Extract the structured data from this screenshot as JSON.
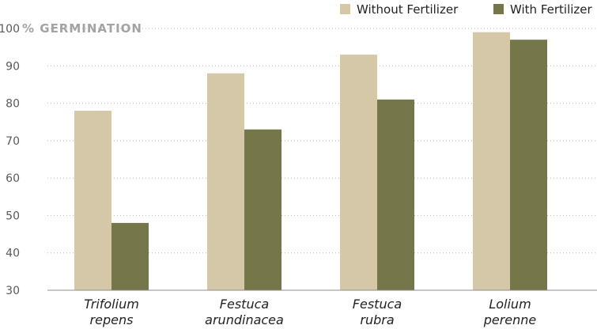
{
  "chart_data": {
    "type": "bar",
    "title": "",
    "ylabel": "% GERMINATION",
    "xlabel": "",
    "ylim": [
      30,
      100
    ],
    "yticks": [
      30,
      40,
      50,
      60,
      70,
      80,
      90,
      100
    ],
    "grid": true,
    "legend_position": "top-right",
    "categories": [
      [
        "Trifolium",
        "repens"
      ],
      [
        "Festuca",
        "arundinacea"
      ],
      [
        "Festuca",
        "rubra"
      ],
      [
        "Lolium",
        "perenne"
      ]
    ],
    "series": [
      {
        "name": "Without Fertilizer",
        "color": "#d4c8a8",
        "values": [
          78,
          88,
          93,
          99
        ]
      },
      {
        "name": "With Fertilizer",
        "color": "#75764a",
        "values": [
          48,
          73,
          81,
          97
        ]
      }
    ]
  }
}
